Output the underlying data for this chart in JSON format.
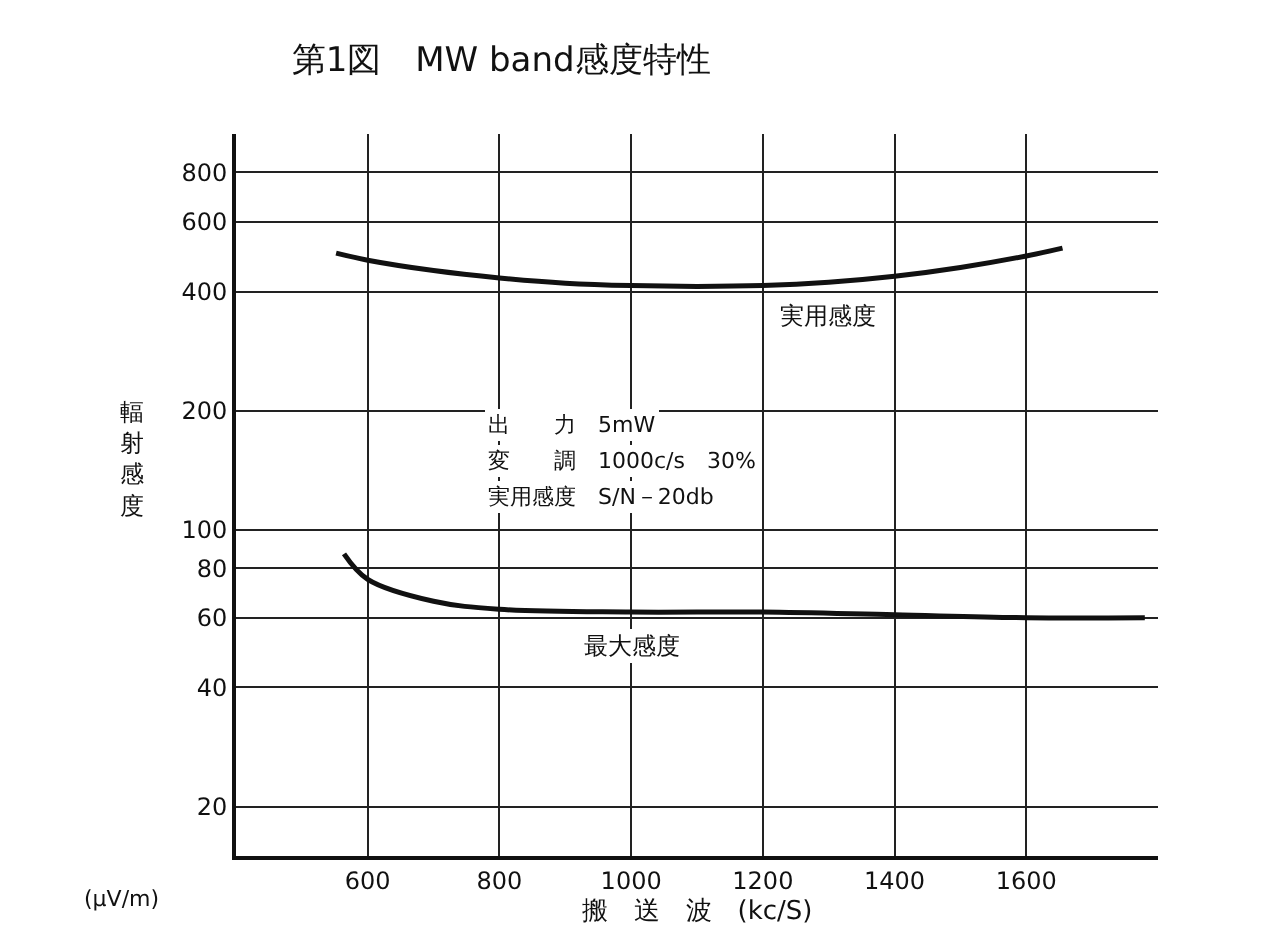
{
  "chart_data": {
    "type": "line",
    "title": "第1図　MW band感度特性",
    "xlabel": "搬　送　波　(kc/S)",
    "ylabel": "輻射感度",
    "x": [
      552,
      600,
      700,
      800,
      900,
      1000,
      1100,
      1200,
      1300,
      1400,
      1500,
      1600,
      1655
    ],
    "series": [
      {
        "name": "実用感度",
        "color": "#111111",
        "values": [
          500,
          480,
          452,
          433,
          420,
          414,
          412,
          414,
          422,
          437,
          460,
          492,
          515
        ]
      },
      {
        "name": "最大感度",
        "color": "#111111",
        "x": [
          564,
          600,
          700,
          800,
          1000,
          1200,
          1400,
          1600,
          1780
        ],
        "values": [
          87,
          75,
          66,
          63,
          62,
          62,
          61,
          60,
          60
        ]
      }
    ],
    "log": "y",
    "xlim": [
      400,
      1800
    ],
    "ylim": [
      15,
      1000
    ],
    "xticks": [
      600,
      800,
      1000,
      1200,
      1400,
      1600
    ],
    "yticks": [
      20,
      40,
      60,
      80,
      100,
      200,
      400,
      600,
      800
    ],
    "grid": true,
    "legend": false,
    "marker": "none",
    "line_style": "solid",
    "annotations": [
      "出　　力　5mW",
      "変　　調　1000c/s　30%",
      "実用感度　S/N－20db",
      "(μV/m)"
    ]
  }
}
